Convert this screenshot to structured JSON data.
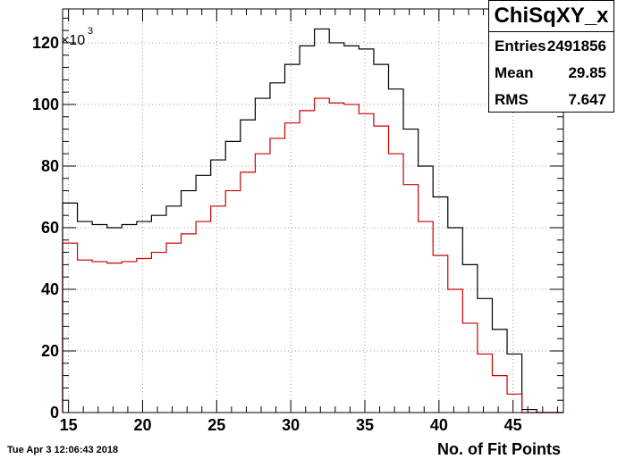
{
  "chart_data": {
    "type": "histogram",
    "title": "ChiSqXY_x",
    "xlabel": "No. of Fit Points",
    "ylabel": "",
    "y_multiplier_label": "×10",
    "y_multiplier_exp": "3",
    "xlim": [
      14.6,
      48.4
    ],
    "ylim": [
      0,
      131
    ],
    "x_ticks": [
      15,
      20,
      25,
      30,
      35,
      40,
      45
    ],
    "y_ticks": [
      0,
      20,
      40,
      60,
      80,
      100,
      120
    ],
    "grid": true,
    "bin_edges": [
      14.6,
      15.6,
      16.6,
      17.6,
      18.6,
      19.6,
      20.6,
      21.6,
      22.6,
      23.6,
      24.6,
      25.6,
      26.6,
      27.6,
      28.6,
      29.6,
      30.6,
      31.6,
      32.6,
      33.6,
      34.6,
      35.6,
      36.6,
      37.6,
      38.6,
      39.6,
      40.6,
      41.6,
      42.6,
      43.6,
      44.6,
      45.6,
      46.6,
      47.6,
      48.4
    ],
    "series": [
      {
        "color": "#000000",
        "values": [
          68,
          62,
          61,
          60,
          61,
          62,
          64,
          67,
          72,
          77,
          82,
          88,
          95,
          102,
          107,
          113,
          119,
          124.5,
          120,
          119,
          118,
          113,
          105,
          92,
          80,
          70,
          60,
          48,
          37,
          27,
          19,
          1,
          0,
          0
        ]
      },
      {
        "color": "#cc0000",
        "values": [
          55,
          49.5,
          49,
          48.5,
          49,
          50,
          52,
          55,
          58,
          62,
          67,
          72,
          78,
          84,
          89,
          94,
          98,
          102,
          100.5,
          100,
          97,
          93,
          84,
          74,
          62,
          51,
          40,
          29,
          19,
          12,
          6,
          0,
          0,
          0
        ]
      }
    ]
  },
  "stats": {
    "title": "ChiSqXY_x",
    "entries_label": "Entries",
    "entries_value": "2491856",
    "mean_label": "Mean",
    "mean_value": "29.85",
    "rms_label": "RMS",
    "rms_value": "7.647"
  },
  "timestamp": "Tue Apr  3 12:06:43 2018"
}
